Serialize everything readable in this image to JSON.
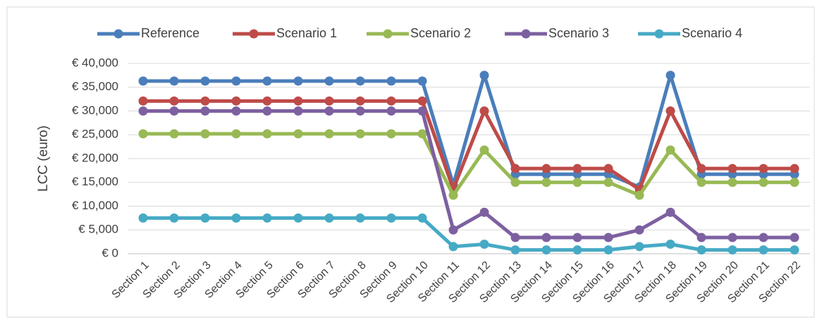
{
  "chart_data": {
    "type": "line",
    "y_label": "LCC (euro)",
    "categories": [
      "Section 1",
      "Section 2",
      "Section 3",
      "Section 4",
      "Section 5",
      "Section 6",
      "Section 7",
      "Section 8",
      "Section 9",
      "Section 10",
      "Section 11",
      "Section 12",
      "Section 13",
      "Section 14",
      "Section 15",
      "Section 16",
      "Section 17",
      "Section 18",
      "Section 19",
      "Section 20",
      "Section 21",
      "Section 22"
    ],
    "series": [
      {
        "name": "Reference",
        "color": "#4a7ebb",
        "values": [
          36300,
          36300,
          36300,
          36300,
          36300,
          36300,
          36300,
          36300,
          36300,
          36300,
          14500,
          37500,
          16700,
          16700,
          16700,
          16700,
          14000,
          37500,
          16700,
          16700,
          16700,
          16700
        ]
      },
      {
        "name": "Scenario 1",
        "color": "#be4b48",
        "values": [
          32100,
          32100,
          32100,
          32100,
          32100,
          32100,
          32100,
          32100,
          32100,
          32100,
          13600,
          30000,
          17900,
          17900,
          17900,
          17900,
          13500,
          30000,
          17900,
          17900,
          17900,
          17900
        ]
      },
      {
        "name": "Scenario 2",
        "color": "#98b954",
        "values": [
          25200,
          25200,
          25200,
          25200,
          25200,
          25200,
          25200,
          25200,
          25200,
          25200,
          12300,
          21800,
          15000,
          15000,
          15000,
          15000,
          12300,
          21800,
          15000,
          15000,
          15000,
          15000
        ]
      },
      {
        "name": "Scenario 3",
        "color": "#7d60a0",
        "values": [
          30000,
          30000,
          30000,
          30000,
          30000,
          30000,
          30000,
          30000,
          30000,
          30000,
          5000,
          8700,
          3400,
          3400,
          3400,
          3400,
          5000,
          8700,
          3400,
          3400,
          3400,
          3400
        ]
      },
      {
        "name": "Scenario 4",
        "color": "#46aac5",
        "values": [
          7500,
          7500,
          7500,
          7500,
          7500,
          7500,
          7500,
          7500,
          7500,
          7500,
          1500,
          2000,
          800,
          800,
          800,
          800,
          1500,
          2000,
          800,
          800,
          800,
          800
        ]
      }
    ],
    "ylim": [
      0,
      40000
    ],
    "yticks": [
      {
        "value": 0,
        "label": "€ 0"
      },
      {
        "value": 5000,
        "label": "€ 5,000"
      },
      {
        "value": 10000,
        "label": "€ 10,000"
      },
      {
        "value": 15000,
        "label": "€ 15,000"
      },
      {
        "value": 20000,
        "label": "€ 20,000"
      },
      {
        "value": 25000,
        "label": "€ 25,000"
      },
      {
        "value": 30000,
        "label": "€ 30,000"
      },
      {
        "value": 35000,
        "label": "€ 35,000"
      },
      {
        "value": 40000,
        "label": "€ 40,000"
      }
    ],
    "grid": true,
    "legend": "top"
  }
}
